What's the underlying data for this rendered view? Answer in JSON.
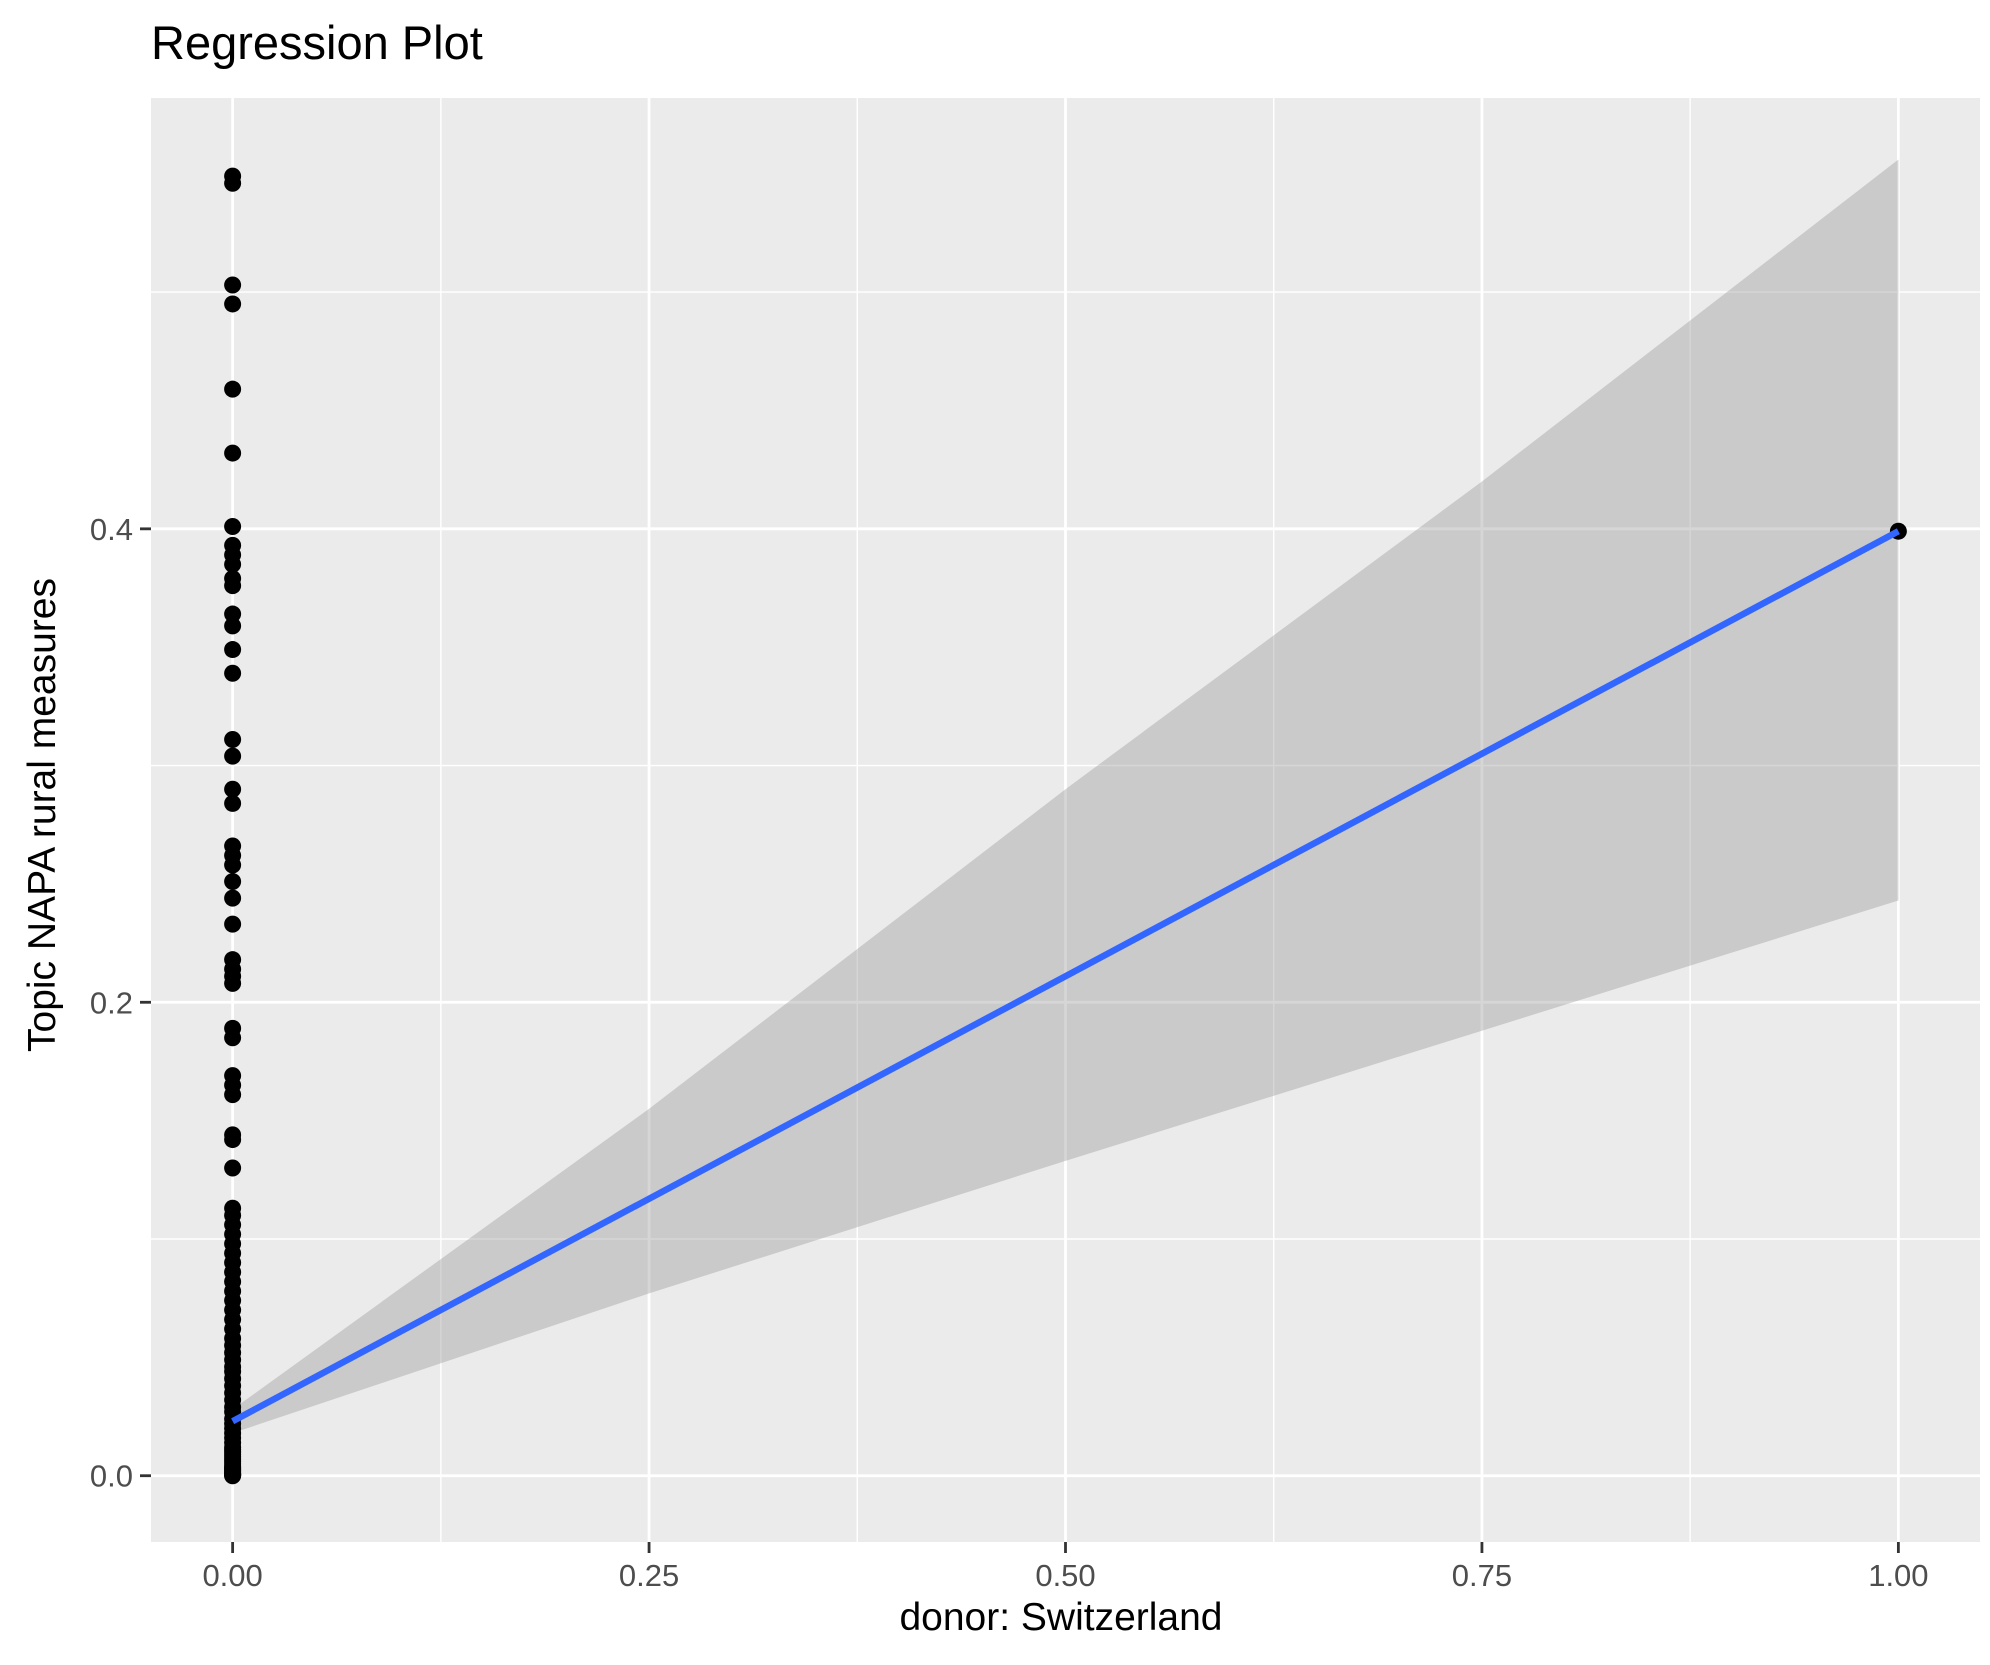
{
  "chart_data": {
    "type": "scatter",
    "title": "Regression Plot",
    "xlabel": "donor: Switzerland",
    "ylabel": "Topic NAPA rural measures",
    "xlim": [
      -0.049,
      1.049
    ],
    "ylim": [
      -0.028,
      0.582
    ],
    "x_ticks": [
      0.0,
      0.25,
      0.5,
      0.75,
      1.0
    ],
    "x_tick_labels": [
      "0.00",
      "0.25",
      "0.50",
      "0.75",
      "1.00"
    ],
    "y_ticks": [
      0.0,
      0.2,
      0.4
    ],
    "y_tick_labels": [
      "0.0",
      "0.2",
      "0.4"
    ],
    "grid": true,
    "points": {
      "x": [
        0,
        0,
        0,
        0,
        0,
        0,
        0,
        0,
        0,
        0,
        0,
        0,
        0,
        0,
        0,
        0,
        0,
        0,
        0,
        0,
        0,
        0,
        0,
        0,
        0,
        0,
        0,
        0,
        0,
        0,
        0,
        0,
        0,
        0,
        0,
        0,
        0,
        0,
        0,
        0,
        0,
        0,
        0,
        0,
        0,
        0,
        0,
        0,
        0,
        0,
        0,
        0,
        0,
        0,
        0,
        0,
        0,
        0,
        0,
        0,
        0,
        0,
        0,
        0,
        0,
        0,
        0,
        0,
        0,
        0,
        0,
        0,
        0,
        0,
        0,
        0,
        0,
        0,
        0,
        0,
        0,
        0,
        0,
        0,
        0,
        0,
        0,
        0,
        0,
        0,
        1
      ],
      "y": [
        0.549,
        0.546,
        0.503,
        0.495,
        0.459,
        0.432,
        0.401,
        0.393,
        0.389,
        0.385,
        0.379,
        0.376,
        0.364,
        0.359,
        0.349,
        0.339,
        0.311,
        0.304,
        0.29,
        0.284,
        0.266,
        0.262,
        0.258,
        0.251,
        0.244,
        0.233,
        0.218,
        0.214,
        0.211,
        0.208,
        0.189,
        0.185,
        0.169,
        0.165,
        0.161,
        0.144,
        0.142,
        0.13,
        0.113,
        0.11,
        0.106,
        0.102,
        0.098,
        0.094,
        0.09,
        0.086,
        0.082,
        0.078,
        0.074,
        0.07,
        0.066,
        0.062,
        0.058,
        0.055,
        0.052,
        0.049,
        0.046,
        0.044,
        0.041,
        0.038,
        0.035,
        0.032,
        0.029,
        0.027,
        0.024,
        0.022,
        0.02,
        0.018,
        0.016,
        0.014,
        0.012,
        0.011,
        0.01,
        0.009,
        0.008,
        0.007,
        0.006,
        0.005,
        0.004,
        0.0035,
        0.003,
        0.0025,
        0.002,
        0.0015,
        0.001,
        0.0007,
        0.0005,
        0.0003,
        0.0001,
        0.0,
        0.399
      ]
    },
    "regression_line": {
      "x": [
        0,
        1
      ],
      "y": [
        0.023,
        0.399
      ],
      "color": "#3366FF"
    },
    "confidence_band": {
      "x": [
        0,
        0.25,
        0.5,
        0.75,
        1.0
      ],
      "upper": [
        0.028,
        0.155,
        0.29,
        0.42,
        0.556
      ],
      "lower": [
        0.018,
        0.077,
        0.133,
        0.188,
        0.243
      ],
      "color": "#999999"
    },
    "colors": {
      "panel": "#EBEBEB",
      "grid": "#FFFFFF",
      "point": "#000000",
      "axis_text": "#4D4D4D",
      "tick": "#333333"
    }
  }
}
